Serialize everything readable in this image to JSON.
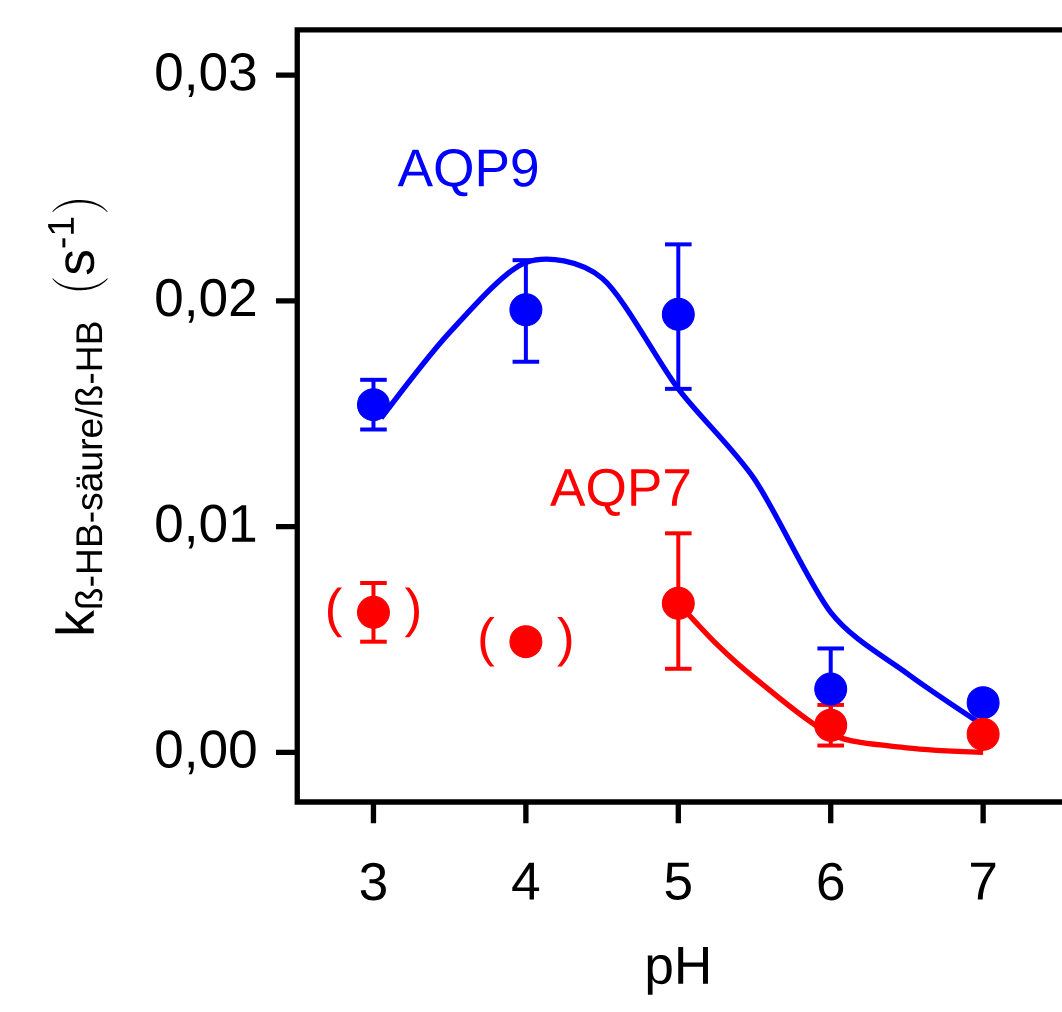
{
  "chart_data": {
    "type": "scatter",
    "xlabel": "pH",
    "ylabel": "\\text{k}_{\\text{ß-HB-säure/ß-HB}}\\ \\,(\\text{s}^{\\text{-1}})",
    "xlim": [
      2.5,
      7.5
    ],
    "ylim": [
      -0.0022,
      0.032
    ],
    "xticks": [
      3,
      4,
      5,
      6,
      7
    ],
    "yticks": [
      {
        "value": 0,
        "label": "0,00"
      },
      {
        "value": 0.01,
        "label": "0,01"
      },
      {
        "value": 0.02,
        "label": "0,02"
      },
      {
        "value": 0.03,
        "label": "0,03"
      }
    ],
    "grid": false,
    "series": [
      {
        "name": "AQP9",
        "marker": "circle",
        "color": "#0000ff",
        "x": [
          3,
          4,
          5,
          6,
          7
        ],
        "values": [
          0.0154,
          0.0196,
          0.0194,
          0.0028,
          0.0022
        ],
        "errors": [
          [
            0.0143,
            0.0165
          ],
          [
            0.0173,
            0.0218
          ],
          [
            0.0161,
            0.0225
          ],
          0.0018,
          null
        ]
      },
      {
        "type": "line",
        "marker": "none",
        "color": "#0000ff",
        "x": [
          3.05,
          3.5,
          4,
          4.5,
          5,
          5.5,
          6,
          6.5,
          7
        ],
        "values": [
          0.0148,
          0.0186,
          0.0217,
          0.021,
          0.0161,
          0.0121,
          0.0062,
          0.0035,
          0.0012
        ]
      },
      {
        "name": "AQP7",
        "marker": "circle",
        "color": "#ff0000",
        "x": [
          3,
          4,
          5,
          6,
          7
        ],
        "values": [
          0.0062,
          0.0049,
          0.0066,
          0.0012,
          0.0008
        ],
        "errors": [
          [
            0.0049,
            0.0075
          ],
          null,
          [
            0.0037,
            0.0097
          ],
          0.0009,
          null
        ]
      },
      {
        "type": "line",
        "marker": "none",
        "color": "#ff0000",
        "x": [
          5,
          5.25,
          5.5,
          6,
          6.5,
          7
        ],
        "values": [
          0.0066,
          0.0048,
          0.0033,
          0.0008,
          0.0002,
          0.0
        ]
      }
    ],
    "annotations": [
      "(",
      ")",
      "(",
      ")"
    ]
  }
}
